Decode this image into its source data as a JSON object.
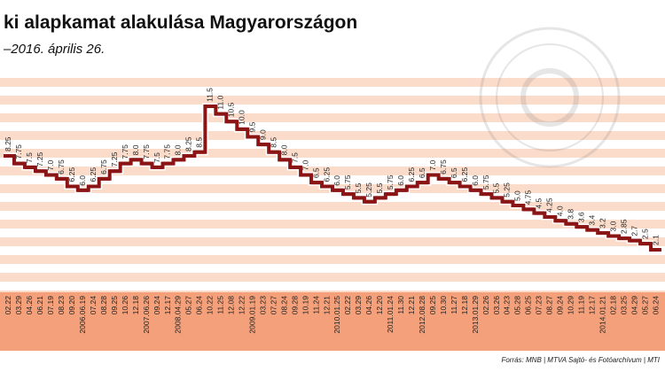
{
  "chart_data": {
    "type": "step-line",
    "title": "ki alapkamat alakulása Magyarországon",
    "subtitle": "–2016. április 26.",
    "source": "Forrás: MNB | MTVA Sajtó- és Fotóarchívum | MTI",
    "categories": [
      "02.22",
      "03.29",
      "04.26",
      "06.21",
      "07.19",
      "08.23",
      "09.20",
      "2006.06.19",
      "07.24",
      "08.28",
      "09.25",
      "10.26",
      "12.18",
      "2007.06.26",
      "09.24",
      "12.17",
      "2008.04.29",
      "05.27",
      "06.24",
      "10.22",
      "11.25",
      "12.08",
      "12.22",
      "2009.01.19",
      "03.23",
      "07.27",
      "08.24",
      "09.28",
      "10.19",
      "11.24",
      "12.21",
      "2010.01.25",
      "02.22",
      "03.29",
      "04.26",
      "12.20",
      "2011.01.24",
      "11.30",
      "12.21",
      "2012.08.28",
      "09.25",
      "10.30",
      "11.27",
      "12.18",
      "2013.01.29",
      "02.26",
      "03.26",
      "04.23",
      "05.28",
      "06.25",
      "07.23",
      "08.27",
      "09.24",
      "10.29",
      "11.19",
      "12.17",
      "2014.01.21",
      "02.18",
      "03.25",
      "04.29",
      "05.27",
      "06.24"
    ],
    "values": [
      8.25,
      7.75,
      7.5,
      7.25,
      7.0,
      6.75,
      6.25,
      6.0,
      6.25,
      6.75,
      7.25,
      7.75,
      8.0,
      7.75,
      7.5,
      7.75,
      8.0,
      8.25,
      8.5,
      11.5,
      11.0,
      10.5,
      10.0,
      9.5,
      9.0,
      8.5,
      8.0,
      7.5,
      7.0,
      6.5,
      6.25,
      6.0,
      5.75,
      5.5,
      5.25,
      5.5,
      5.75,
      6.0,
      6.25,
      6.5,
      7.0,
      6.75,
      6.5,
      6.25,
      6.0,
      5.75,
      5.5,
      5.25,
      5.0,
      4.75,
      4.5,
      4.25,
      4.0,
      3.8,
      3.6,
      3.4,
      3.2,
      3.0,
      2.85,
      2.7,
      2.5,
      2.1
    ],
    "value_labels": [
      "8.25",
      "7.75",
      "7.5",
      "7.25",
      "7.0",
      "6.75",
      "6.25",
      "6.0",
      "6.25",
      "6.75",
      "7.25",
      "7.75",
      "8.0",
      "7.75",
      "7.5",
      "7.75",
      "8.0",
      "8.25",
      "8.5",
      "11.5",
      "11.0",
      "10.5",
      "10.0",
      "9.5",
      "9.0",
      "8.5",
      "8.0",
      "7.5",
      "7.0",
      "6.5",
      "6.25",
      "6.0",
      "5.75",
      "5.5",
      "5.25",
      "5.5",
      "5.75",
      "6.0",
      "6.25",
      "6.5",
      "7.0",
      "6.75",
      "6.5",
      "6.25",
      "6.0",
      "5.75",
      "5.5",
      "5.25",
      "5.0",
      "4.75",
      "4.5",
      "4.25",
      "4.0",
      "3.8",
      "3.6",
      "3.4",
      "3.2",
      "3.0",
      "2.85",
      "2.7",
      "2.5",
      "2.1"
    ],
    "color": "#8b1414"
  }
}
